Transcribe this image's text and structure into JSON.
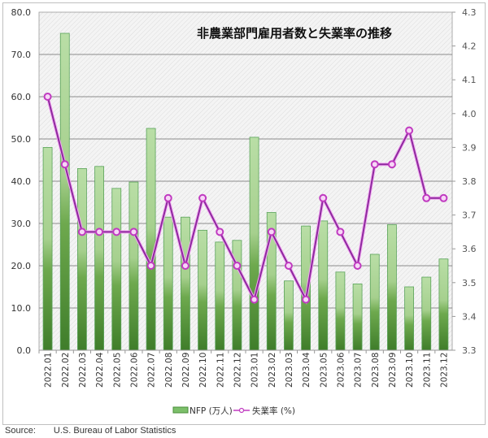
{
  "chart_data": {
    "type": "bar+line",
    "title": "非農業部門雇用者数と失業率の推移",
    "categories": [
      "2022.01",
      "2022.02",
      "2022.03",
      "2022.04",
      "2022.05",
      "2022.06",
      "2022.07",
      "2022.08",
      "2022.09",
      "2022.10",
      "2022.11",
      "2022.12",
      "2023.01",
      "2023.02",
      "2023.03",
      "2023.04",
      "2023.05",
      "2023.06",
      "2023.07",
      "2023.08",
      "2023.09",
      "2023.10",
      "2023.11",
      "2023.12"
    ],
    "series": [
      {
        "name": "NFP (万人)",
        "type": "bar",
        "axis": "left",
        "color": "#5a9a3c",
        "values": [
          48.0,
          75.0,
          43.0,
          43.5,
          38.3,
          39.8,
          52.5,
          31.5,
          31.5,
          28.4,
          25.6,
          26.0,
          50.4,
          32.6,
          16.4,
          29.4,
          30.6,
          18.5,
          15.7,
          22.7,
          29.7,
          15.0,
          17.3,
          21.6
        ]
      },
      {
        "name": "失業率 (%)",
        "type": "line",
        "axis": "right",
        "color": "#8e2a9e",
        "values": [
          4.05,
          3.85,
          3.65,
          3.65,
          3.65,
          3.65,
          3.55,
          3.75,
          3.55,
          3.75,
          3.65,
          3.55,
          3.45,
          3.65,
          3.55,
          3.45,
          3.75,
          3.65,
          3.55,
          3.85,
          3.85,
          3.95,
          3.75,
          3.75
        ]
      }
    ],
    "yleft": {
      "lim": [
        0,
        80
      ],
      "ticks": [
        "0.0",
        "10.0",
        "20.0",
        "30.0",
        "40.0",
        "50.0",
        "60.0",
        "70.0",
        "80.0"
      ]
    },
    "yright": {
      "lim": [
        3.3,
        4.3
      ],
      "ticks": [
        "3.3",
        "3.4",
        "3.5",
        "3.6",
        "3.7",
        "3.8",
        "3.9",
        "4.0",
        "4.1",
        "4.2",
        "4.3"
      ]
    },
    "grid": true,
    "legend": "bottom"
  },
  "source": {
    "label": "Source:",
    "text": "U.S. Bureau of Labor Statistics"
  }
}
